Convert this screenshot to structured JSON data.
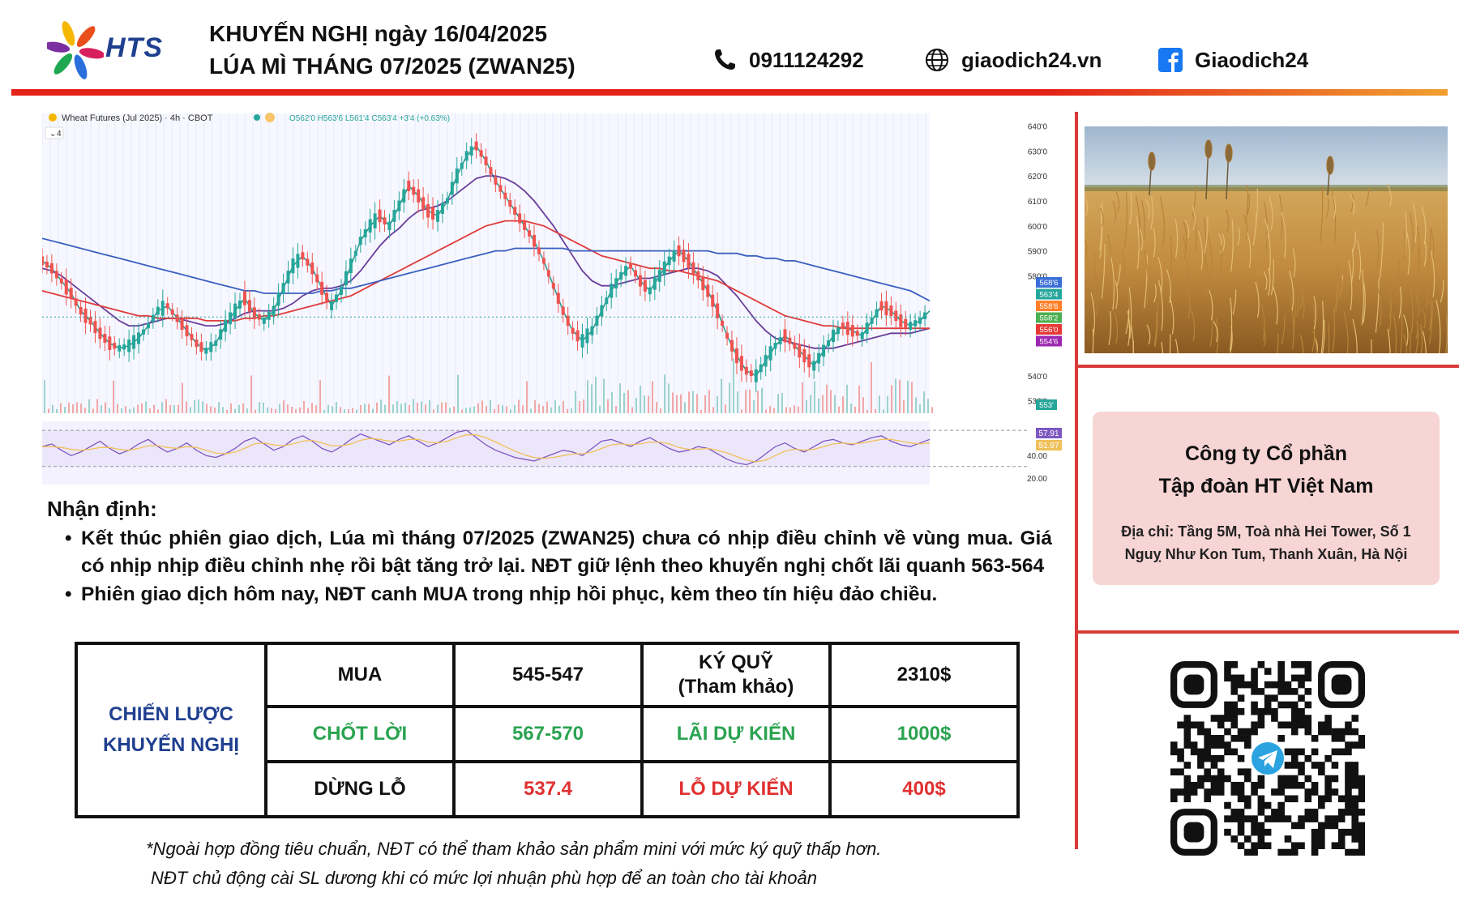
{
  "header": {
    "logo_text": "HTS",
    "title_line1": "KHUYẾN NGHỊ ngày 16/04/2025",
    "title_line2": "LÚA MÌ THÁNG 07/2025 (ZWAN25)",
    "phone": "0911124292",
    "website": "giaodich24.vn",
    "facebook": "Giaodich24",
    "icons": [
      "phone-icon",
      "globe-icon",
      "facebook-icon"
    ]
  },
  "chart": {
    "symbol_label": "Wheat Futures (Jul 2025) · 4h · CBOT",
    "ohlc_label": "O562'0 H563'6 L561'4 C563'4 +3'4 (+0.63%)",
    "indicator_count": "4"
  },
  "chart_data": {
    "type": "line",
    "title": "",
    "subtitle": "Wheat Futures (Jul 2025) · 4h · CBOT",
    "y_ticks": [
      "640'0",
      "630'0",
      "620'0",
      "610'0",
      "600'0",
      "590'0",
      "580'0",
      "540'0",
      "530'0"
    ],
    "ylim": [
      525,
      645
    ],
    "price_labels": [
      {
        "text": "568'6",
        "color": "#3b6fd8",
        "value": 568.75
      },
      {
        "text": "563'4",
        "color": "#26a69a",
        "value": 563.5
      },
      {
        "text": "558'6",
        "color": "#ff7f27",
        "value": 558.75
      },
      {
        "text": "558'2",
        "color": "#4caf50",
        "value": 558.25
      },
      {
        "text": "556'0",
        "color": "#e53935",
        "value": 556.0
      },
      {
        "text": "554'6",
        "color": "#9c27b0",
        "value": 554.75
      }
    ],
    "volume_label": "553'",
    "series": [
      {
        "color": "#2a9d8f",
        "values": [
          586,
          583,
          578,
          573,
          566,
          562,
          557,
          553,
          551,
          552,
          555,
          560,
          566,
          568,
          563,
          558,
          553,
          550,
          553,
          560,
          566,
          571,
          565,
          562,
          566,
          575,
          584,
          588,
          583,
          575,
          568,
          574,
          584,
          594,
          600,
          604,
          600,
          608,
          616,
          612,
          606,
          604,
          610,
          620,
          628,
          632,
          626,
          618,
          612,
          606,
          600,
          594,
          586,
          576,
          566,
          558,
          554,
          558,
          566,
          574,
          580,
          584,
          578,
          574,
          580,
          586,
          590,
          586,
          580,
          574,
          566,
          556,
          548,
          542,
          540,
          546,
          552,
          556,
          552,
          548,
          544,
          550,
          556,
          560,
          558,
          556,
          562,
          568,
          566,
          562,
          560,
          562,
          566
        ]
      },
      {
        "color": "#6a3d9a",
        "values": [
          583,
          582,
          580,
          577,
          574,
          571,
          568,
          565,
          562,
          560,
          560,
          561,
          562,
          563,
          563,
          562,
          561,
          560,
          560,
          561,
          563,
          565,
          566,
          566,
          566,
          567,
          569,
          572,
          574,
          575,
          575,
          576,
          578,
          582,
          587,
          592,
          596,
          599,
          603,
          606,
          607,
          608,
          610,
          613,
          616,
          619,
          620,
          620,
          619,
          617,
          614,
          610,
          605,
          600,
          594,
          588,
          582,
          578,
          576,
          576,
          577,
          578,
          579,
          579,
          580,
          581,
          582,
          583,
          583,
          582,
          580,
          576,
          572,
          567,
          562,
          558,
          555,
          554,
          553,
          552,
          551,
          551,
          551,
          552,
          553,
          554,
          555,
          556,
          557,
          557,
          557,
          558,
          559
        ]
      },
      {
        "color": "#e03b3b",
        "values": [
          574,
          573,
          572,
          571,
          570,
          569,
          568,
          567,
          566,
          565,
          564,
          564,
          563,
          563,
          563,
          563,
          563,
          562,
          562,
          562,
          562,
          563,
          563,
          564,
          564,
          565,
          566,
          567,
          568,
          569,
          570,
          571,
          572,
          574,
          576,
          578,
          580,
          582,
          584,
          586,
          588,
          590,
          592,
          594,
          596,
          598,
          600,
          601,
          602,
          602,
          602,
          601,
          600,
          598,
          596,
          594,
          592,
          590,
          588,
          587,
          586,
          585,
          584,
          583,
          583,
          582,
          582,
          581,
          580,
          579,
          578,
          576,
          574,
          572,
          570,
          568,
          566,
          564,
          563,
          562,
          561,
          560,
          560,
          559,
          559,
          559,
          559,
          559,
          559,
          559,
          559,
          559,
          559
        ]
      },
      {
        "color": "#3b5fc0",
        "values": [
          595,
          594,
          593,
          592,
          591,
          590,
          589,
          588,
          587,
          586,
          585,
          584,
          583,
          582,
          581,
          580,
          579,
          578,
          577,
          576,
          575,
          574,
          574,
          573,
          573,
          573,
          573,
          573,
          573,
          574,
          574,
          575,
          575,
          576,
          577,
          578,
          579,
          580,
          581,
          582,
          583,
          584,
          585,
          586,
          587,
          588,
          589,
          590,
          590,
          591,
          591,
          591,
          591,
          591,
          591,
          590,
          590,
          590,
          590,
          590,
          590,
          590,
          590,
          590,
          590,
          590,
          590,
          590,
          590,
          590,
          589,
          589,
          589,
          588,
          588,
          587,
          587,
          586,
          586,
          585,
          584,
          583,
          582,
          581,
          580,
          579,
          578,
          577,
          576,
          575,
          574,
          572,
          570
        ]
      }
    ],
    "oscillator": {
      "labels": [
        "57.91",
        "51.97",
        "40.00",
        "20.00"
      ],
      "values": [
        52,
        55,
        48,
        42,
        46,
        52,
        58,
        50,
        44,
        48,
        55,
        60,
        52,
        46,
        50,
        56,
        48,
        42,
        40,
        44,
        50,
        58,
        62,
        55,
        48,
        52,
        60,
        64,
        58,
        50,
        46,
        52,
        60,
        66,
        62,
        58,
        54,
        60,
        64,
        58,
        52,
        56,
        62,
        68,
        70,
        62,
        54,
        48,
        44,
        40,
        38,
        36,
        40,
        44,
        48,
        46,
        42,
        50,
        58,
        60,
        56,
        52,
        58,
        62,
        56,
        50,
        46,
        48,
        52,
        50,
        44,
        38,
        34,
        32,
        36,
        44,
        52,
        56,
        50,
        46,
        52,
        58,
        60,
        56,
        54,
        58,
        62,
        64,
        58,
        54,
        52,
        56,
        60
      ],
      "signal": [
        52,
        52,
        51,
        49,
        48,
        49,
        51,
        51,
        49,
        48,
        50,
        53,
        53,
        51,
        50,
        52,
        51,
        48,
        45,
        44,
        46,
        50,
        55,
        56,
        54,
        53,
        55,
        58,
        59,
        56,
        53,
        53,
        55,
        59,
        61,
        60,
        58,
        58,
        60,
        60,
        57,
        56,
        58,
        62,
        65,
        65,
        62,
        57,
        52,
        47,
        43,
        40,
        39,
        40,
        42,
        44,
        44,
        46,
        50,
        54,
        55,
        54,
        55,
        57,
        57,
        55,
        51,
        49,
        49,
        50,
        48,
        45,
        41,
        37,
        35,
        37,
        42,
        47,
        49,
        48,
        49,
        52,
        55,
        56,
        55,
        56,
        58,
        60,
        60,
        58,
        56,
        55,
        56
      ]
    },
    "grid": true
  },
  "analysis": {
    "title": "Nhận định:",
    "bullets": [
      "Kết thúc phiên giao dịch, Lúa mì tháng 07/2025 (ZWAN25) chưa có nhịp điều chỉnh về vùng mua. Giá có nhịp nhịp điều chỉnh nhẹ rồi bật tăng trở lại. NĐT giữ lệnh theo khuyến nghị chốt lãi quanh 563-564",
      "Phiên giao dịch hôm nay, NĐT canh MUA trong nhịp hồi phục, kèm theo tín hiệu đảo chiều."
    ]
  },
  "strategy": {
    "label_line1": "CHIẾN LƯỢC",
    "label_line2": "KHUYẾN NGHỊ",
    "buy_label": "MUA",
    "buy_range": "545-547",
    "margin_label_line1": "KÝ QUỸ",
    "margin_label_line2": "(Tham khảo)",
    "margin_value": "2310$",
    "tp_label": "CHỐT LỜI",
    "tp_range": "567-570",
    "profit_label": "LÃI DỰ KIẾN",
    "profit_value": "1000$",
    "sl_label": "DỪNG LỖ",
    "sl_value": "537.4",
    "loss_label": "LỖ DỰ KIẾN",
    "loss_value": "400$",
    "colors": {
      "label": "#1f3f8f",
      "green": "#2aa350",
      "red": "#e03030"
    }
  },
  "company": {
    "name_line1": "Công ty Cổ phần",
    "name_line2": "Tập đoàn HT Việt Nam",
    "address_line1": "Địa chỉ: Tầng 5M, Toà nhà Hei Tower, Số 1",
    "address_line2": "Nguỵ Như Kon Tum, Thanh Xuân, Hà Nội"
  },
  "footnote": {
    "line1": "*Ngoài hợp đồng tiêu chuẩn, NĐT có thể tham khảo sản phẩm mini với mức ký quỹ thấp hơn.",
    "line2": "NĐT chủ động cài SL dương khi có mức lợi nhuận phù hợp để an toàn cho tài khoản"
  },
  "accent_colors": {
    "brand_red": "#e32219",
    "brand_blue": "#1f3f8f"
  }
}
